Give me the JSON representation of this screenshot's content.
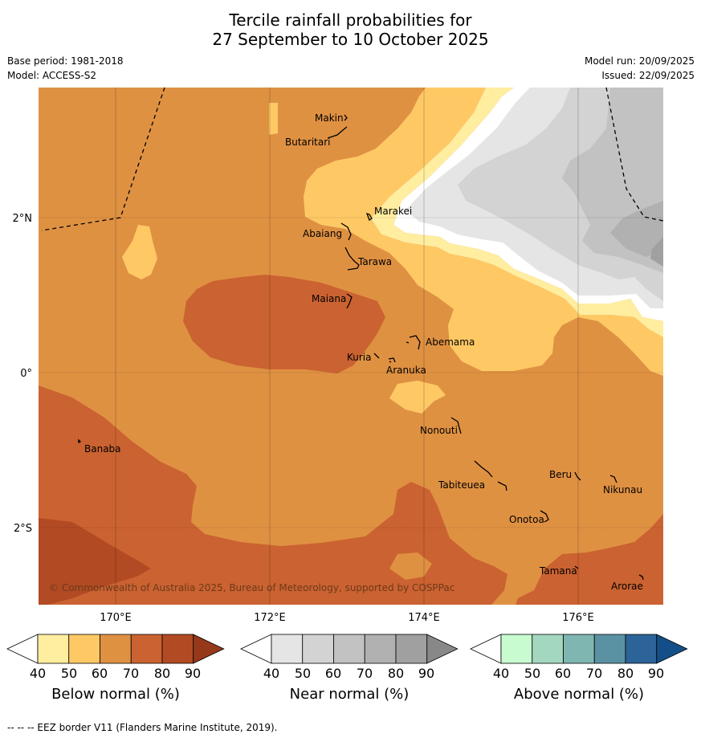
{
  "title_line1": "Tercile rainfall probabilities for",
  "title_line2": "27 September to 10 October 2025",
  "base_period": "Base period: 1981-2018",
  "model": "Model: ACCESS-S2",
  "model_run": "Model run: 20/09/2025",
  "issued": "Issued: 22/09/2025",
  "copyright": "© Commonwealth of Australia 2025, Bureau of Meteorology, supported by COSPPac",
  "lon_labels": [
    "170°E",
    "172°E",
    "174°E",
    "176°E"
  ],
  "lat_labels": [
    "2°N",
    "0°",
    "2°S"
  ],
  "islands": [
    "Makin",
    "Butaritari",
    "Marakei",
    "Abaiang",
    "Tarawa",
    "Maiana",
    "Abemama",
    "Kuria",
    "Aranuka",
    "Nonouti",
    "Banaba",
    "Tabiteuea",
    "Beru",
    "Nikunau",
    "Onotoa",
    "Tamana",
    "Arorae"
  ],
  "colorbars": [
    {
      "label": "Below normal (%)",
      "ticks": [
        "40",
        "50",
        "60",
        "70",
        "80",
        "90"
      ],
      "colors": [
        "#ffffff",
        "#ffeda0",
        "#fec965",
        "#df9142",
        "#cb6231",
        "#b24a23",
        "#96391b"
      ]
    },
    {
      "label": "Near normal (%)",
      "ticks": [
        "40",
        "50",
        "60",
        "70",
        "80",
        "90"
      ],
      "colors": [
        "#ffffff",
        "#e5e5e5",
        "#d3d3d3",
        "#c2c2c2",
        "#b1b1b1",
        "#a0a0a0",
        "#888888"
      ]
    },
    {
      "label": "Above normal (%)",
      "ticks": [
        "40",
        "50",
        "60",
        "70",
        "80",
        "90"
      ],
      "colors": [
        "#ffffff",
        "#c8fbd0",
        "#a3d7bf",
        "#7fb6b2",
        "#5b92a3",
        "#2c6499",
        "#144e88"
      ]
    }
  ],
  "footnote": "--  --  -- EEZ border V11 (Flanders Marine Institute, 2019)."
}
